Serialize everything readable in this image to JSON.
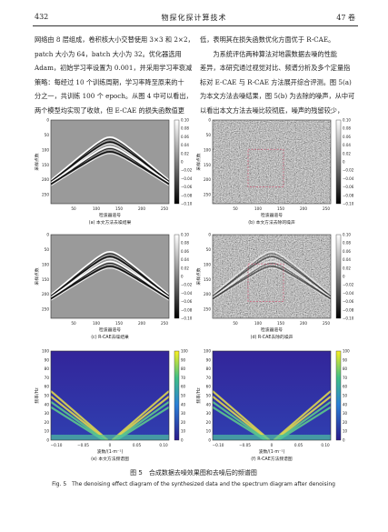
{
  "header": {
    "page_number": "432",
    "journal": "物探化探计算技术",
    "volume": "47 卷"
  },
  "left_column": [
    "网络由 8 层组成，卷积核大小交替使用 3×3 和 2×2，",
    "patch 大小为 64，batch 大小为 32。优化器选用",
    "Adam，初始学习率设置为 0.001，并采用学习率衰减",
    "策略：每经过 10 个训练周期，学习率降至原来的十",
    "分之一，共训练 100 个 epoch。从图 4 中可以看出，",
    "两个模型均实现了收敛，但 E-CAE 的损失函数值更"
  ],
  "right_column": [
    "低，表明其在损失函数优化方面优于 R-CAE。",
    "　　为系统评估两种算法对地震数据去噪的性能",
    "差异，本研究通过视觉对比、频谱分析及多个定量指",
    "标对 E-CAE 与 R-CAE 方法展开综合评测。图 5(a)",
    "为本文方法去噪结果，图 5(b) 为去除的噪声，从中可",
    "以看出本文方法去噪比较彻底，噪声的残留较少，"
  ],
  "figure": {
    "seismic_axes": {
      "xlabel": "检波器道号",
      "ylabel": "采样点数",
      "xticks": [
        "50",
        "100",
        "150",
        "200",
        "250"
      ],
      "yticks": [
        "0",
        "50",
        "100",
        "150",
        "200",
        "250"
      ],
      "colorbar_ticks": [
        "0.10",
        "0.08",
        "0.06",
        "0.04",
        "0.02",
        "0",
        "−0.02",
        "−0.04",
        "−0.06",
        "−0.08",
        "−0.10"
      ]
    },
    "spectrum_axes": {
      "xlabel": "波数/(1·m⁻¹)",
      "ylabel": "频率/Hz",
      "xticks": [
        "−0.10",
        "−0.05",
        "0",
        "0.05",
        "0.10"
      ],
      "yticks": [
        "100",
        "90",
        "80",
        "70",
        "60",
        "50",
        "40",
        "30",
        "20",
        "10",
        "0"
      ],
      "colorbar_ticks": [
        "100",
        "90",
        "80",
        "70",
        "60",
        "50",
        "40",
        "30",
        "20",
        "10",
        "0"
      ]
    },
    "panels": [
      {
        "kind": "denoised",
        "caption": "(a) 本文方法去噪结果"
      },
      {
        "kind": "noise",
        "caption": "(b) 本文方法去除的噪声"
      },
      {
        "kind": "denoised",
        "caption": "(c) R-CAE去噪结果"
      },
      {
        "kind": "noise_residual",
        "caption": "(d) R-CAE去除的噪声"
      },
      {
        "kind": "spectrum",
        "caption": "(e) 本文方法频谱图"
      },
      {
        "kind": "spectrum",
        "caption": "(f) R-CAE方法频谱图"
      }
    ],
    "caption_cn": "图 5　合成数据去噪效果图和去噪后的频谱图",
    "caption_en": "Fig. 5　The denoising effect diagram of the synthesized data and the spectrum diagram after denoising"
  }
}
